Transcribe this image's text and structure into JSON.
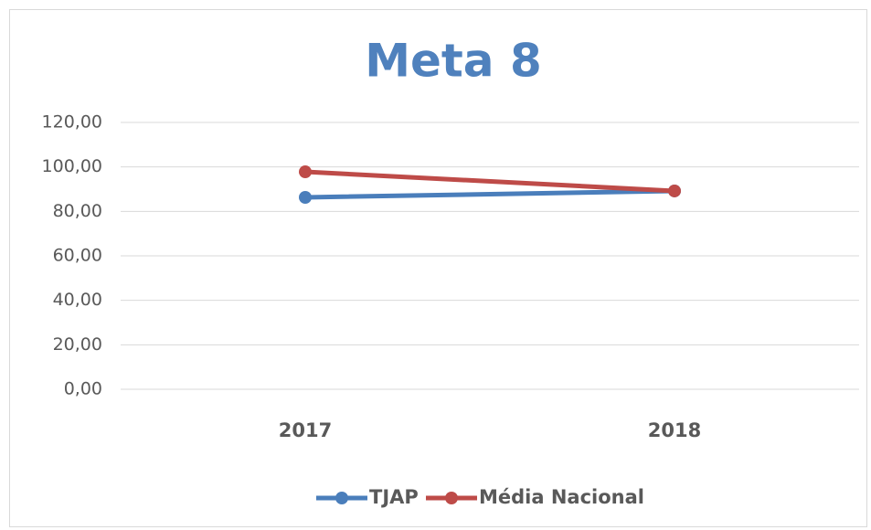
{
  "chart_data": {
    "type": "line",
    "title": "Meta 8",
    "categories": [
      "2017",
      "2018"
    ],
    "series": [
      {
        "name": "TJAP",
        "color": "#4a7ebb",
        "values": [
          86.3,
          89.2
        ]
      },
      {
        "name": "Média Nacional",
        "color": "#be4b48",
        "values": [
          97.8,
          89.2
        ]
      }
    ],
    "ylim": [
      0,
      120
    ],
    "yticks": [
      {
        "value": 0,
        "label": "0,00"
      },
      {
        "value": 20,
        "label": "20,00"
      },
      {
        "value": 40,
        "label": "40,00"
      },
      {
        "value": 60,
        "label": "60,00"
      },
      {
        "value": 80,
        "label": "80,00"
      },
      {
        "value": 100,
        "label": "100,00"
      },
      {
        "value": 120,
        "label": "120,00"
      }
    ],
    "grid": true,
    "legend": "bottom"
  }
}
